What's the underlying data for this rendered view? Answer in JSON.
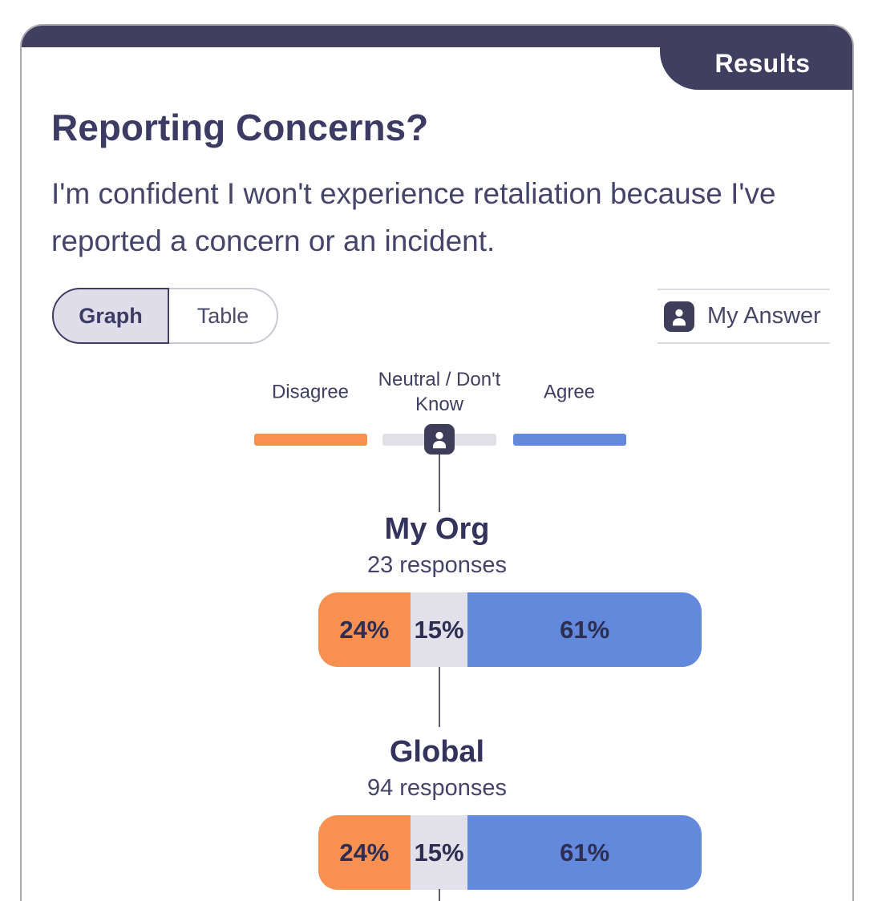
{
  "tab": {
    "results_label": "Results"
  },
  "header": {
    "title": "Reporting Concerns?",
    "question": "I'm confident I won't experience retaliation because I've reported a concern or an incident."
  },
  "view_toggle": {
    "graph_label": "Graph",
    "table_label": "Table",
    "selected": "Graph"
  },
  "my_answer": {
    "label": "My Answer",
    "icon": "person-icon"
  },
  "colors": {
    "navy": "#413f60",
    "disagree": "#f79051",
    "neutral": "#e2e1ea",
    "agree": "#6289dc"
  },
  "chart_data": {
    "type": "bar",
    "stacked": true,
    "orientation": "horizontal",
    "categories": [
      "Disagree",
      "Neutral / Don't\nKnow",
      "Agree"
    ],
    "legend_position": "top",
    "my_answer_category": "Neutral / Don't Know",
    "groups": [
      {
        "name": "My Org",
        "responses_label": "23 responses",
        "responses": 23,
        "values": [
          24,
          15,
          61
        ],
        "labels": [
          "24%",
          "15%",
          "61%"
        ]
      },
      {
        "name": "Global",
        "responses_label": "94 responses",
        "responses": 94,
        "values": [
          24,
          15,
          61
        ],
        "labels": [
          "24%",
          "15%",
          "61%"
        ]
      }
    ]
  }
}
